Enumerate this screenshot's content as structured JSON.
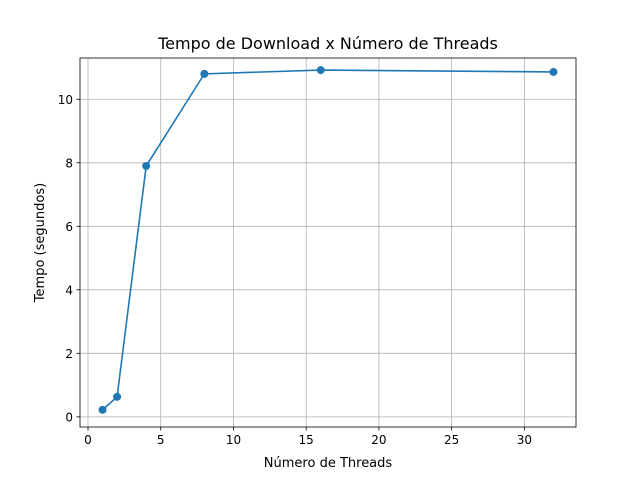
{
  "chart_data": {
    "type": "line",
    "title": "Tempo de Download x Número de Threads",
    "xlabel": "Número de Threads",
    "ylabel": "Tempo (segundos)",
    "x": [
      1,
      2,
      4,
      8,
      16,
      32
    ],
    "series": [
      {
        "values": [
          0.22,
          0.63,
          7.9,
          10.8,
          10.92,
          10.86
        ]
      }
    ],
    "xlim": [
      -0.55,
      33.55
    ],
    "ylim": [
      -0.32,
      11.3
    ],
    "xticks": [
      0,
      5,
      10,
      15,
      20,
      25,
      30
    ],
    "yticks": [
      0,
      2,
      4,
      6,
      8,
      10
    ],
    "grid": true,
    "marker": "circle",
    "colors": {
      "series": "#1f77b4",
      "grid": "#b0b0b0"
    }
  }
}
